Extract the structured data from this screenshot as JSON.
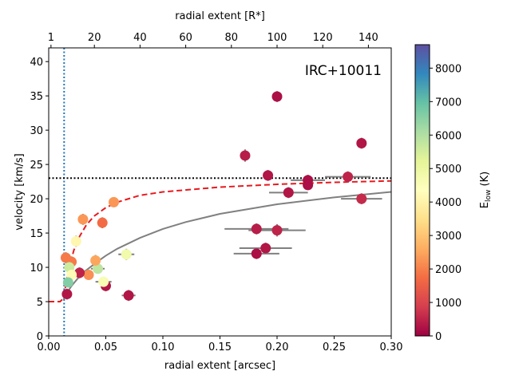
{
  "chart_data": {
    "type": "scatter",
    "annotation": "IRC+10011",
    "xlabel": "radial extent [arcsec]",
    "ylabel": "velocity [km/s]",
    "xlim": [
      0.0,
      0.3
    ],
    "ylim": [
      0,
      42
    ],
    "x_ticks": [
      0.0,
      0.05,
      0.1,
      0.15,
      0.2,
      0.25,
      0.3
    ],
    "x_tick_labels": [
      "0.00",
      "0.05",
      "0.10",
      "0.15",
      "0.20",
      "0.25",
      "0.30"
    ],
    "y_ticks": [
      0,
      5,
      10,
      15,
      20,
      25,
      30,
      35,
      40
    ],
    "y_tick_labels": [
      "0",
      "5",
      "10",
      "15",
      "20",
      "25",
      "30",
      "35",
      "40"
    ],
    "top_axis": {
      "label": "radial extent [R*]",
      "arcsec_per_unit": 0.002,
      "ticks": [
        1,
        20,
        40,
        60,
        80,
        100,
        120,
        140
      ],
      "tick_labels": [
        "1",
        "20",
        "40",
        "60",
        "80",
        "100",
        "120",
        "140"
      ]
    },
    "colorbar": {
      "label": "E_low (K)",
      "label_main": "E",
      "label_sub": "low",
      "label_unit": " (K)",
      "min": 0,
      "max": 8700,
      "ticks": [
        0,
        1000,
        2000,
        3000,
        4000,
        5000,
        6000,
        7000,
        8000
      ],
      "tick_labels": [
        "0",
        "1000",
        "2000",
        "3000",
        "4000",
        "5000",
        "6000",
        "7000",
        "8000"
      ],
      "colors": [
        "#9e0142",
        "#d53e4f",
        "#f46d43",
        "#fdae61",
        "#fee08b",
        "#ffffbf",
        "#e6f598",
        "#abdda4",
        "#66c2a5",
        "#3288bd",
        "#5e4fa2"
      ]
    },
    "reference_lines": {
      "vertical_dotted_x": 0.0135,
      "horizontal_dotted_y": 23.0
    },
    "model_curves": [
      {
        "name": "red dashed model",
        "color": "#e8191e",
        "style": "dashed",
        "points": [
          [
            0.0,
            5.0
          ],
          [
            0.01,
            5.0
          ],
          [
            0.013,
            5.5
          ],
          [
            0.015,
            7.5
          ],
          [
            0.018,
            10.0
          ],
          [
            0.022,
            12.5
          ],
          [
            0.027,
            14.5
          ],
          [
            0.033,
            16.2
          ],
          [
            0.04,
            17.5
          ],
          [
            0.05,
            18.7
          ],
          [
            0.06,
            19.5
          ],
          [
            0.08,
            20.5
          ],
          [
            0.1,
            21.0
          ],
          [
            0.15,
            21.7
          ],
          [
            0.2,
            22.1
          ],
          [
            0.25,
            22.4
          ],
          [
            0.3,
            22.6
          ]
        ]
      },
      {
        "name": "grey model",
        "color": "#808080",
        "style": "solid",
        "points": [
          [
            0.013,
            5.3
          ],
          [
            0.016,
            6.3
          ],
          [
            0.02,
            7.3
          ],
          [
            0.025,
            8.3
          ],
          [
            0.03,
            9.2
          ],
          [
            0.04,
            10.5
          ],
          [
            0.05,
            11.7
          ],
          [
            0.06,
            12.7
          ],
          [
            0.08,
            14.3
          ],
          [
            0.1,
            15.6
          ],
          [
            0.12,
            16.6
          ],
          [
            0.15,
            17.8
          ],
          [
            0.2,
            19.2
          ],
          [
            0.25,
            20.2
          ],
          [
            0.3,
            21.0
          ]
        ]
      }
    ],
    "points": [
      {
        "x": 0.2,
        "y": 34.9,
        "xerr": 0.0,
        "yerr": 0.8,
        "elow": 200
      },
      {
        "x": 0.274,
        "y": 28.1,
        "xerr": 0.0,
        "yerr": 0.8,
        "elow": 300
      },
      {
        "x": 0.172,
        "y": 26.3,
        "xerr": 0.0,
        "yerr": 0.9,
        "elow": 400
      },
      {
        "x": 0.192,
        "y": 23.4,
        "xerr": 0.0,
        "yerr": 0.8,
        "elow": 300
      },
      {
        "x": 0.262,
        "y": 23.2,
        "xerr": 0.02,
        "yerr": 0.8,
        "elow": 500
      },
      {
        "x": 0.227,
        "y": 22.7,
        "xerr": 0.015,
        "yerr": 0.8,
        "elow": 200
      },
      {
        "x": 0.227,
        "y": 22.0,
        "xerr": 0.0,
        "yerr": 0.7,
        "elow": 200
      },
      {
        "x": 0.21,
        "y": 20.9,
        "xerr": 0.017,
        "yerr": 0.8,
        "elow": 300
      },
      {
        "x": 0.274,
        "y": 20.0,
        "xerr": 0.018,
        "yerr": 0.8,
        "elow": 600
      },
      {
        "x": 0.182,
        "y": 15.6,
        "xerr": 0.028,
        "yerr": 0.8,
        "elow": 400
      },
      {
        "x": 0.2,
        "y": 15.4,
        "xerr": 0.025,
        "yerr": 0.9,
        "elow": 500
      },
      {
        "x": 0.19,
        "y": 12.8,
        "xerr": 0.023,
        "yerr": 0.8,
        "elow": 300
      },
      {
        "x": 0.182,
        "y": 12.0,
        "xerr": 0.02,
        "yerr": 0.8,
        "elow": 200
      },
      {
        "x": 0.07,
        "y": 5.9,
        "xerr": 0.006,
        "yerr": 0.8,
        "elow": 300
      },
      {
        "x": 0.05,
        "y": 7.3,
        "xerr": 0.0,
        "yerr": 0.8,
        "elow": 300
      },
      {
        "x": 0.048,
        "y": 7.9,
        "xerr": 0.007,
        "yerr": 0.7,
        "elow": 4600
      },
      {
        "x": 0.043,
        "y": 9.8,
        "xerr": 0.006,
        "yerr": 0.7,
        "elow": 5800
      },
      {
        "x": 0.041,
        "y": 11.0,
        "xerr": 0.0,
        "yerr": 0.8,
        "elow": 2500
      },
      {
        "x": 0.068,
        "y": 11.9,
        "xerr": 0.007,
        "yerr": 0.8,
        "elow": 4800
      },
      {
        "x": 0.057,
        "y": 19.5,
        "xerr": 0.0,
        "yerr": 0.7,
        "elow": 2300
      },
      {
        "x": 0.047,
        "y": 16.5,
        "xerr": 0.0,
        "yerr": 0.8,
        "elow": 1700
      },
      {
        "x": 0.03,
        "y": 17.0,
        "xerr": 0.0,
        "yerr": 0.8,
        "elow": 2300
      },
      {
        "x": 0.024,
        "y": 13.8,
        "xerr": 0.004,
        "yerr": 0.8,
        "elow": 4100
      },
      {
        "x": 0.035,
        "y": 8.9,
        "xerr": 0.0,
        "yerr": 0.7,
        "elow": 2200
      },
      {
        "x": 0.027,
        "y": 9.2,
        "xerr": 0.0,
        "yerr": 0.8,
        "elow": 500
      },
      {
        "x": 0.02,
        "y": 10.8,
        "xerr": 0.0,
        "yerr": 0.8,
        "elow": 1900
      },
      {
        "x": 0.015,
        "y": 11.4,
        "xerr": 0.0,
        "yerr": 0.8,
        "elow": 1900
      },
      {
        "x": 0.018,
        "y": 10.0,
        "xerr": 0.004,
        "yerr": 0.8,
        "elow": 5600
      },
      {
        "x": 0.02,
        "y": 8.9,
        "xerr": 0.0,
        "yerr": 0.7,
        "elow": 4200
      },
      {
        "x": 0.017,
        "y": 7.8,
        "xerr": 0.0,
        "yerr": 0.7,
        "elow": 6600
      },
      {
        "x": 0.016,
        "y": 6.1,
        "xerr": 0.0,
        "yerr": 0.8,
        "elow": 300
      }
    ]
  }
}
